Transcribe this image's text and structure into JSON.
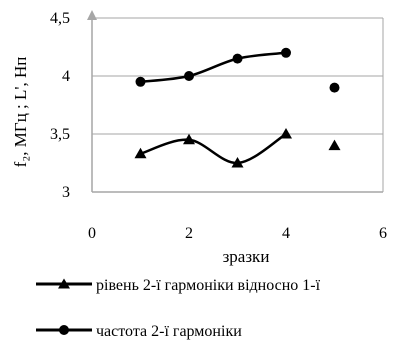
{
  "chart_data": {
    "type": "line",
    "xlabel": "зразки",
    "ylabel": "f₂, МГц ; L', Нп",
    "xlim": [
      0,
      6
    ],
    "ylim": [
      3,
      4.5
    ],
    "x_ticks": [
      "0",
      "2",
      "4",
      "6"
    ],
    "y_ticks": [
      "3",
      "3,5",
      "4",
      "4,5"
    ],
    "grid": "horizontal",
    "legend_position": "bottom",
    "series": [
      {
        "name": "рівень 2-ї гармоніки відносно 1-ї",
        "marker": "triangle",
        "line_points": [
          [
            1,
            3.33
          ],
          [
            2,
            3.45
          ],
          [
            3,
            3.25
          ],
          [
            4,
            3.5
          ]
        ],
        "separate_points": [
          [
            5,
            3.4
          ]
        ]
      },
      {
        "name": "частота 2-ї гармоніки",
        "marker": "circle",
        "line_points": [
          [
            1,
            3.95
          ],
          [
            2,
            4.0
          ],
          [
            3,
            4.15
          ],
          [
            4,
            4.2
          ]
        ],
        "separate_points": [
          [
            5,
            3.9
          ]
        ]
      }
    ],
    "colors": {
      "series": "#000000",
      "grid": "#a6a6a6",
      "axis": "#a6a6a6"
    }
  }
}
